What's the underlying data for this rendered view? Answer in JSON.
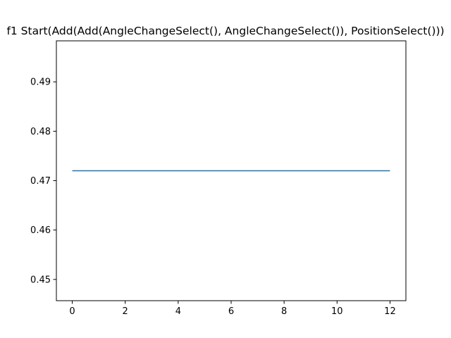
{
  "chart_data": {
    "type": "line",
    "title": "f1 Start(Add(Add(AngleChangeSelect(), AngleChangeSelect()), PositionSelect()))",
    "xlabel": "",
    "ylabel": "",
    "xlim": [
      -0.6,
      12.6
    ],
    "ylim": [
      0.4457,
      0.4983
    ],
    "xticks": [
      0,
      2,
      4,
      6,
      8,
      10,
      12
    ],
    "yticks": [
      0.45,
      0.46,
      0.47,
      0.48,
      0.49
    ],
    "ytick_labels": [
      "0.45",
      "0.46",
      "0.47",
      "0.48",
      "0.49"
    ],
    "grid": false,
    "series": [
      {
        "color": "#1f77b4",
        "x": [
          0,
          1,
          2,
          3,
          4,
          5,
          6,
          7,
          8,
          9,
          10,
          11,
          12
        ],
        "y": [
          0.472,
          0.472,
          0.472,
          0.472,
          0.472,
          0.472,
          0.472,
          0.472,
          0.472,
          0.472,
          0.472,
          0.472,
          0.472
        ]
      }
    ]
  }
}
